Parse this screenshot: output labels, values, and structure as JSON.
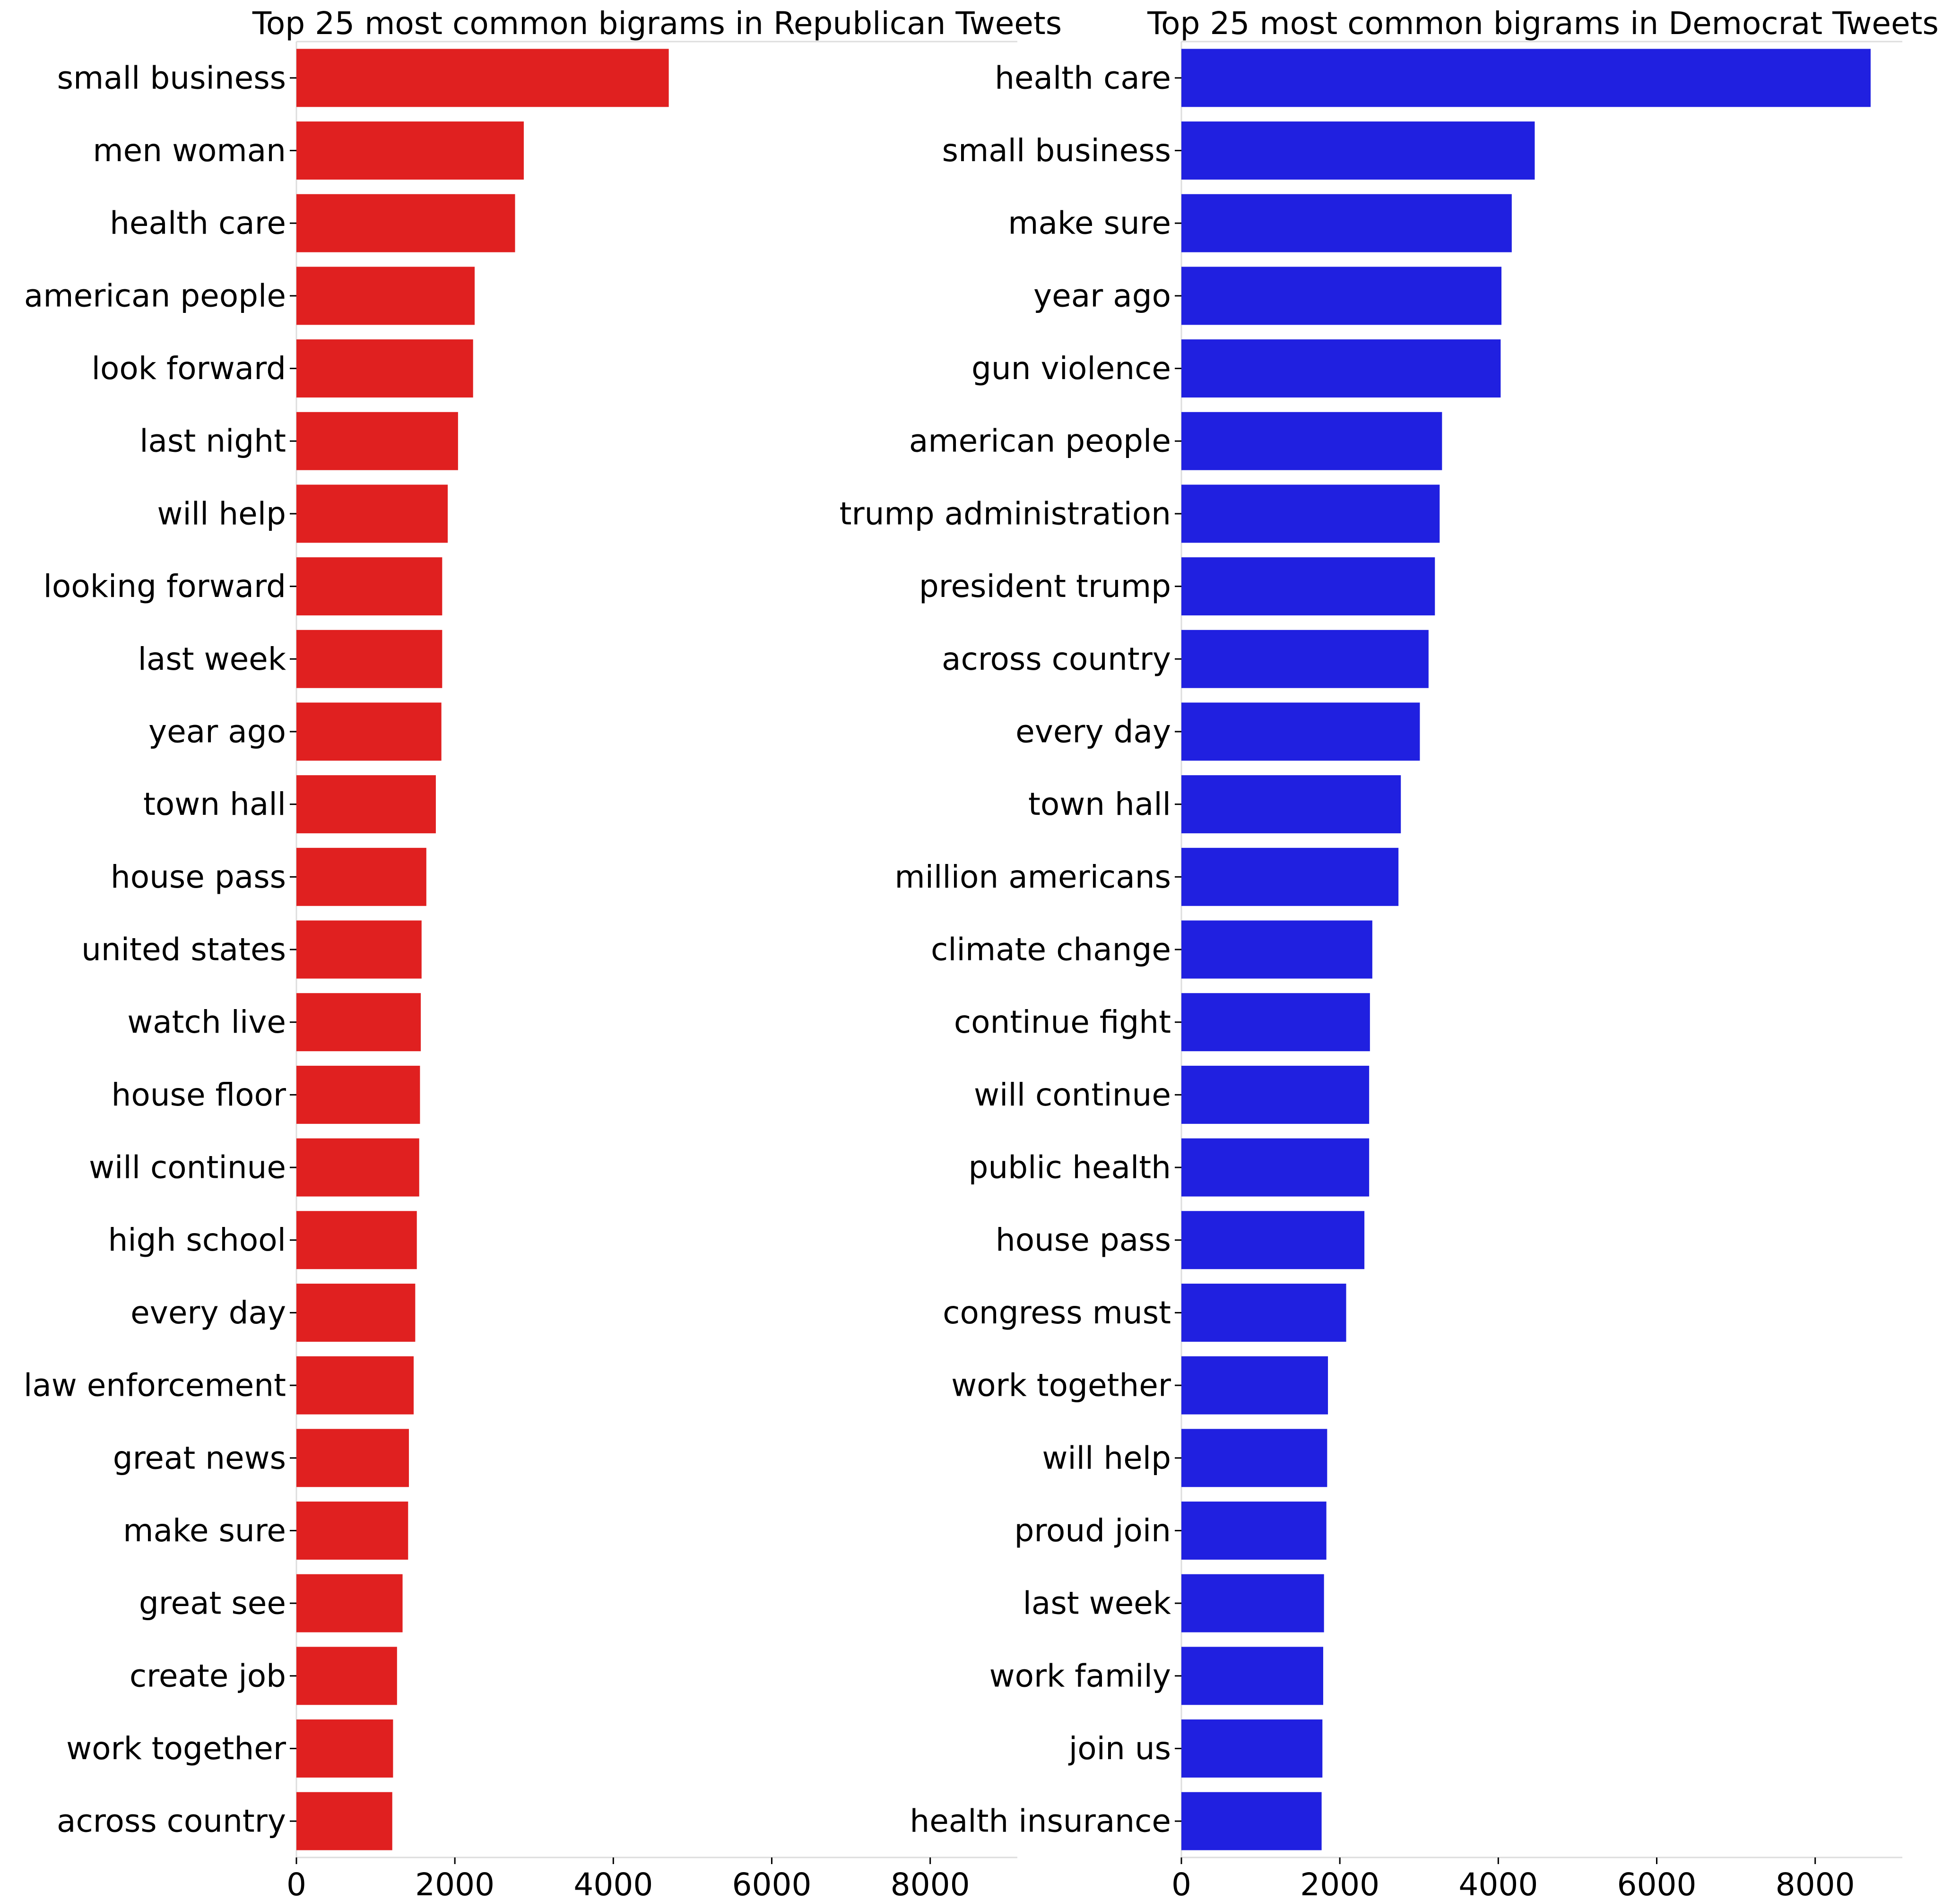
{
  "chart_data": [
    {
      "type": "bar",
      "orientation": "horizontal",
      "title": "Top 25 most common bigrams in Republican Tweets",
      "xlabel": "",
      "ylabel": "",
      "xlim": [
        0,
        9100
      ],
      "xticks": [
        "0",
        "2000",
        "4000",
        "6000",
        "8000"
      ],
      "grid": false,
      "color": "#e02020",
      "categories": [
        "small business",
        "men woman",
        "health care",
        "american people",
        "look forward",
        "last night",
        "will help",
        "looking forward",
        "last week",
        "year ago",
        "town hall",
        "house pass",
        "united states",
        "watch live",
        "house floor",
        "will continue",
        "high school",
        "every day",
        "law enforcement",
        "great news",
        "make sure",
        "great see",
        "create job",
        "work together",
        "across country"
      ],
      "values": [
        4700,
        2870,
        2760,
        2250,
        2230,
        2040,
        1910,
        1840,
        1840,
        1830,
        1760,
        1640,
        1580,
        1570,
        1560,
        1550,
        1520,
        1500,
        1480,
        1420,
        1410,
        1340,
        1270,
        1220,
        1210
      ]
    },
    {
      "type": "bar",
      "orientation": "horizontal",
      "title": "Top 25 most common bigrams in Democrat Tweets",
      "xlabel": "",
      "ylabel": "",
      "xlim": [
        0,
        9100
      ],
      "xticks": [
        "0",
        "2000",
        "4000",
        "6000",
        "8000"
      ],
      "grid": false,
      "color": "#2020e0",
      "categories": [
        "health care",
        "small business",
        "make sure",
        "year ago",
        "gun violence",
        "american people",
        "trump administration",
        "president trump",
        "across country",
        "every day",
        "town hall",
        "million americans",
        "climate change",
        "continue fight",
        "will continue",
        "public health",
        "house pass",
        "congress must",
        "work together",
        "will help",
        "proud join",
        "last week",
        "work family",
        "join us",
        "health insurance"
      ],
      "values": [
        8700,
        4460,
        4170,
        4040,
        4030,
        3290,
        3260,
        3200,
        3120,
        3010,
        2770,
        2740,
        2410,
        2380,
        2370,
        2370,
        2310,
        2080,
        1850,
        1840,
        1830,
        1800,
        1790,
        1780,
        1770
      ]
    }
  ]
}
